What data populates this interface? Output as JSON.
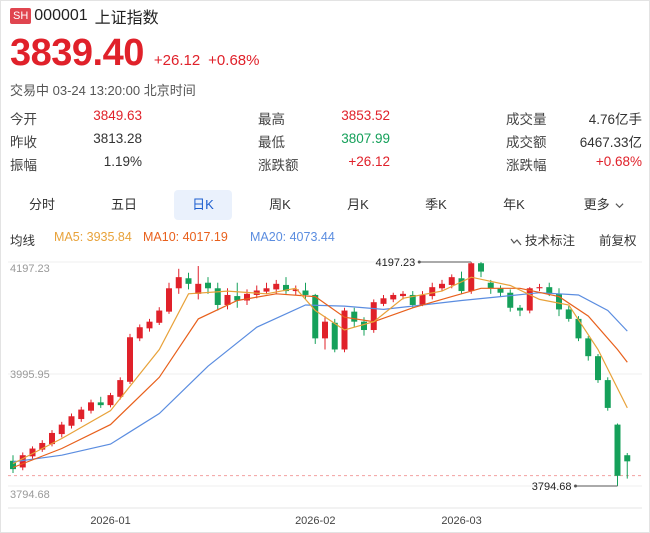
{
  "header": {
    "exchange_badge": "SH",
    "code": "000001",
    "name": "上证指数"
  },
  "quote": {
    "price": "3839.40",
    "change": "+26.12",
    "change_pct": "+0.68%",
    "status": "交易中 03-24 13:20:00 北京时间"
  },
  "stats": [
    {
      "label": "今开",
      "value": "3849.63",
      "color": "up",
      "label2": "最高",
      "value2": "3853.52",
      "color2": "up",
      "label3": "成交量",
      "value3": "4.76亿手",
      "color3": "neutral"
    },
    {
      "label": "昨收",
      "value": "3813.28",
      "color": "neutral",
      "label2": "最低",
      "value2": "3807.99",
      "color2": "down",
      "label3": "成交额",
      "value3": "6467.33亿",
      "color3": "neutral"
    },
    {
      "label": "振幅",
      "value": "1.19%",
      "color": "neutral",
      "label2": "涨跌额",
      "value2": "+26.12",
      "color2": "up",
      "label3": "涨跌幅",
      "value3": "+0.68%",
      "color3": "up"
    }
  ],
  "tabs": [
    "分时",
    "五日",
    "日K",
    "周K",
    "月K",
    "季K",
    "年K",
    "更多"
  ],
  "active_tab": "日K",
  "ma_legend": {
    "title": "均线",
    "ma5": "MA5: 3935.84",
    "ma10": "MA10: 4017.19",
    "ma20": "MA20: 4073.44",
    "indicator_btn": "技术标注",
    "adjust_btn": "前复权"
  },
  "colors": {
    "up": "#e0212a",
    "down": "#15a05a",
    "ma5": "#e8a23a",
    "ma10": "#e8601c",
    "ma20": "#5b8de0",
    "accent": "#1d5fd0"
  },
  "icons": {
    "more": "chevron-down-icon",
    "indicator": "indicator-icon"
  },
  "chart_data": {
    "type": "candlestick",
    "y_ticks": [
      "4197.23",
      "3995.95",
      "3794.68"
    ],
    "ylim": [
      3794.68,
      4197.23
    ],
    "x_ticks": [
      "2026-01",
      "2026-02",
      "2026-03"
    ],
    "x_tick_index": [
      10,
      31,
      46
    ],
    "prev_close": 3813.28,
    "annotations": {
      "high": "4197.23",
      "low": "3794.68",
      "high_index": 47,
      "low_index": 62
    },
    "candles": [
      [
        3840,
        3825,
        3850,
        3818
      ],
      [
        3828,
        3850,
        3855,
        3823
      ],
      [
        3848,
        3862,
        3866,
        3844
      ],
      [
        3860,
        3872,
        3877,
        3856
      ],
      [
        3870,
        3890,
        3895,
        3866
      ],
      [
        3888,
        3905,
        3910,
        3882
      ],
      [
        3903,
        3920,
        3925,
        3898
      ],
      [
        3915,
        3932,
        3937,
        3910
      ],
      [
        3930,
        3945,
        3950,
        3925
      ],
      [
        3945,
        3940,
        3955,
        3935
      ],
      [
        3940,
        3958,
        3962,
        3936
      ],
      [
        3955,
        3985,
        3990,
        3950
      ],
      [
        3982,
        4062,
        4068,
        3978
      ],
      [
        4060,
        4080,
        4085,
        4055
      ],
      [
        4078,
        4090,
        4095,
        4072
      ],
      [
        4088,
        4110,
        4116,
        4084
      ],
      [
        4108,
        4150,
        4160,
        4104
      ],
      [
        4150,
        4170,
        4185,
        4140
      ],
      [
        4168,
        4158,
        4178,
        4148
      ],
      [
        4140,
        4158,
        4190,
        4130
      ],
      [
        4160,
        4150,
        4170,
        4140
      ],
      [
        4150,
        4120,
        4160,
        4110
      ],
      [
        4120,
        4138,
        4150,
        4112
      ],
      [
        4136,
        4128,
        4160,
        4115
      ],
      [
        4128,
        4140,
        4148,
        4120
      ],
      [
        4138,
        4146,
        4155,
        4132
      ],
      [
        4144,
        4150,
        4160,
        4140
      ],
      [
        4148,
        4158,
        4165,
        4140
      ],
      [
        4156,
        4145,
        4170,
        4140
      ],
      [
        4145,
        4148,
        4155,
        4138
      ],
      [
        4146,
        4138,
        4160,
        4130
      ],
      [
        4138,
        4060,
        4140,
        4050
      ],
      [
        4060,
        4090,
        4100,
        4040
      ],
      [
        4088,
        4040,
        4095,
        4035
      ],
      [
        4040,
        4110,
        4115,
        4035
      ],
      [
        4108,
        4090,
        4115,
        4080
      ],
      [
        4090,
        4075,
        4098,
        4065
      ],
      [
        4075,
        4125,
        4130,
        4070
      ],
      [
        4122,
        4132,
        4138,
        4118
      ],
      [
        4130,
        4138,
        4142,
        4125
      ],
      [
        4136,
        4140,
        4145,
        4130
      ],
      [
        4138,
        4120,
        4145,
        4115
      ],
      [
        4120,
        4138,
        4145,
        4118
      ],
      [
        4136,
        4152,
        4160,
        4130
      ],
      [
        4150,
        4158,
        4165,
        4145
      ],
      [
        4156,
        4170,
        4175,
        4150
      ],
      [
        4168,
        4145,
        4180,
        4140
      ],
      [
        4145,
        4195,
        4197,
        4140
      ],
      [
        4195,
        4180,
        4197,
        4170
      ],
      [
        4160,
        4150,
        4165,
        4140
      ],
      [
        4150,
        4142,
        4155,
        4135
      ],
      [
        4142,
        4115,
        4148,
        4108
      ],
      [
        4115,
        4110,
        4120,
        4100
      ],
      [
        4110,
        4150,
        4152,
        4105
      ],
      [
        4150,
        4152,
        4158,
        4145
      ],
      [
        4152,
        4140,
        4160,
        4136
      ],
      [
        4140,
        4112,
        4150,
        4100
      ],
      [
        4112,
        4095,
        4118,
        4090
      ],
      [
        4095,
        4060,
        4100,
        4055
      ],
      [
        4060,
        4028,
        4064,
        4020
      ],
      [
        4028,
        3985,
        4032,
        3980
      ],
      [
        3985,
        3935,
        3990,
        3930
      ],
      [
        3905,
        3813,
        3907,
        3795
      ],
      [
        3850,
        3839,
        3854,
        3808
      ]
    ],
    "ma5": [
      [
        0,
        3835
      ],
      [
        5,
        3880
      ],
      [
        10,
        3930
      ],
      [
        15,
        4040
      ],
      [
        18,
        4140
      ],
      [
        22,
        4145
      ],
      [
        26,
        4140
      ],
      [
        29,
        4150
      ],
      [
        31,
        4110
      ],
      [
        34,
        4075
      ],
      [
        37,
        4090
      ],
      [
        40,
        4132
      ],
      [
        44,
        4145
      ],
      [
        47,
        4170
      ],
      [
        51,
        4155
      ],
      [
        54,
        4130
      ],
      [
        57,
        4120
      ],
      [
        60,
        4040
      ],
      [
        63,
        3935
      ]
    ],
    "ma10": [
      [
        0,
        3828
      ],
      [
        5,
        3862
      ],
      [
        10,
        3905
      ],
      [
        15,
        3990
      ],
      [
        19,
        4095
      ],
      [
        23,
        4128
      ],
      [
        27,
        4140
      ],
      [
        31,
        4135
      ],
      [
        34,
        4098
      ],
      [
        37,
        4090
      ],
      [
        41,
        4115
      ],
      [
        45,
        4135
      ],
      [
        48,
        4150
      ],
      [
        52,
        4150
      ],
      [
        56,
        4135
      ],
      [
        59,
        4100
      ],
      [
        62,
        4040
      ],
      [
        63,
        4017
      ]
    ],
    "ma20": [
      [
        0,
        3838
      ],
      [
        5,
        3850
      ],
      [
        10,
        3870
      ],
      [
        15,
        3925
      ],
      [
        20,
        4010
      ],
      [
        25,
        4080
      ],
      [
        30,
        4120
      ],
      [
        34,
        4118
      ],
      [
        38,
        4112
      ],
      [
        42,
        4120
      ],
      [
        46,
        4128
      ],
      [
        50,
        4135
      ],
      [
        54,
        4142
      ],
      [
        58,
        4138
      ],
      [
        61,
        4110
      ],
      [
        63,
        4073
      ]
    ]
  }
}
